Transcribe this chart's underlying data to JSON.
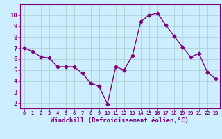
{
  "x": [
    0,
    1,
    2,
    3,
    4,
    5,
    6,
    7,
    8,
    9,
    10,
    11,
    12,
    13,
    14,
    15,
    16,
    17,
    18,
    19,
    20,
    21,
    22,
    23
  ],
  "y": [
    7.0,
    6.7,
    6.2,
    6.1,
    5.3,
    5.3,
    5.3,
    4.7,
    3.8,
    3.5,
    1.9,
    5.3,
    5.0,
    6.3,
    9.4,
    10.0,
    10.2,
    9.1,
    8.1,
    7.1,
    6.2,
    6.5,
    4.8,
    4.2
  ],
  "line_color": "#800080",
  "marker": "D",
  "marker_size": 2.5,
  "linewidth": 1.0,
  "bg_color": "#cceeff",
  "grid_color": "#aacccc",
  "xlabel": "Windchill (Refroidissement éolien,°C)",
  "xlim": [
    -0.5,
    23.5
  ],
  "ylim": [
    1.5,
    11.0
  ],
  "yticks": [
    2,
    3,
    4,
    5,
    6,
    7,
    8,
    9,
    10
  ],
  "xticks": [
    0,
    1,
    2,
    3,
    4,
    5,
    6,
    7,
    8,
    9,
    10,
    11,
    12,
    13,
    14,
    15,
    16,
    17,
    18,
    19,
    20,
    21,
    22,
    23
  ],
  "tick_color": "#800080",
  "label_color": "#800080",
  "axis_color": "#800080",
  "spine_bottom_color": "#800080",
  "xlabel_fontsize": 6.5,
  "tick_fontsize_x": 5.0,
  "tick_fontsize_y": 6.5
}
